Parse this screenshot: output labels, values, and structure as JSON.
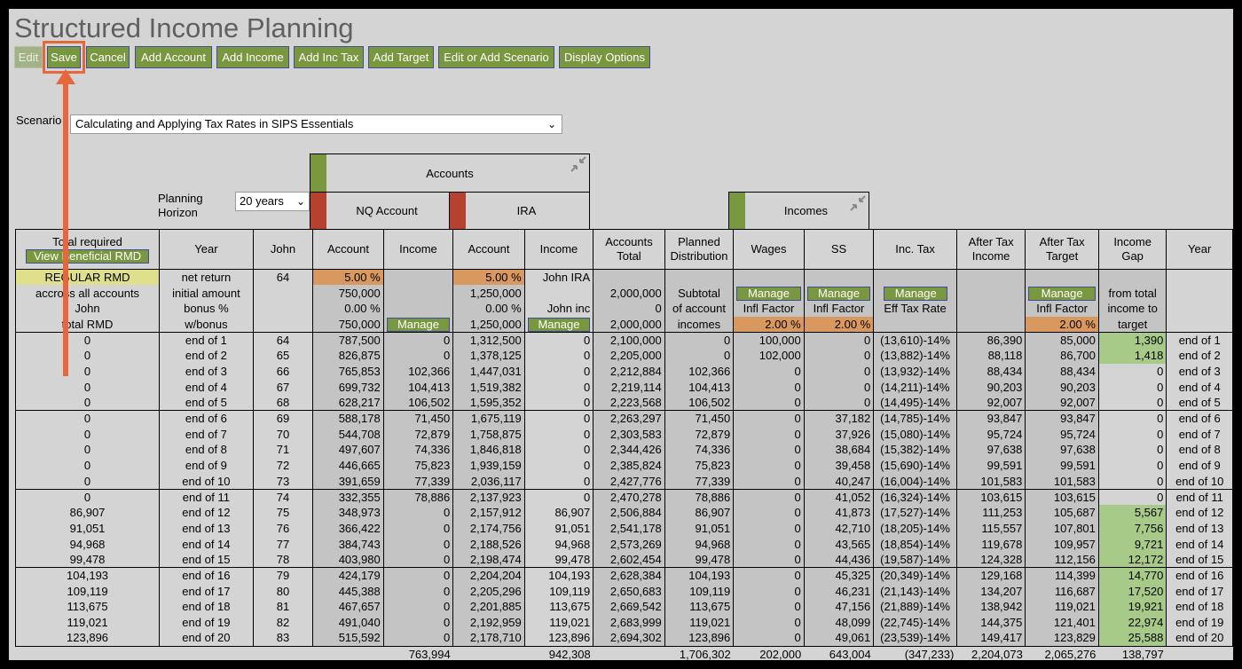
{
  "title": "Structured Income Planning",
  "toolbar": {
    "edit": "Edit",
    "save": "Save",
    "cancel": "Cancel",
    "add_account": "Add Account",
    "add_income": "Add Income",
    "add_inc_tax": "Add Inc Tax",
    "add_target": "Add Target",
    "edit_scenario": "Edit or Add Scenario",
    "display_options": "Display Options"
  },
  "scenario": {
    "label": "Scenario",
    "value": "Calculating and Applying Tax Rates in SIPS Essentials"
  },
  "planning_horizon": {
    "label1": "Planning",
    "label2": "Horizon",
    "value": "20 years"
  },
  "groups": {
    "accounts": "Accounts",
    "incomes": "Incomes",
    "nq_account": "NQ Account",
    "ira": "IRA"
  },
  "colors": {
    "button": "#78973f",
    "accounts_swatch": "#78973f",
    "nq_swatch": "#b5412e",
    "ira_swatch": "#b5412e",
    "incomes_swatch": "#78973f",
    "rate_cell": "#d9995e",
    "gap_cell": "#a8ca88",
    "highlight": "#e8663b"
  },
  "headers": {
    "total_required": "Total required",
    "view_rmd": "View Beneficial RMD",
    "year": "Year",
    "john": "John",
    "account": "Account",
    "income": "Income",
    "accounts_total_1": "Accounts",
    "accounts_total_2": "Total",
    "planned_1": "Planned",
    "planned_2": "Distribution",
    "wages": "Wages",
    "ss": "SS",
    "inc_tax": "Inc. Tax",
    "after_tax_income_1": "After Tax",
    "after_tax_income_2": "Income",
    "after_tax_target_1": "After Tax",
    "after_tax_target_2": "Target",
    "income_gap_1": "Income",
    "income_gap_2": "Gap",
    "year_right": "Year"
  },
  "setup": {
    "regular_rmd": "REGULAR RMD",
    "across": "accross all accounts",
    "john": "John",
    "total_rmd": "total RMD",
    "net_return": "net return",
    "initial_amount": "initial amount",
    "bonus": "bonus %",
    "w_bonus": "w/bonus",
    "john_age": "64",
    "nq_rate": "5.00  %",
    "nq_initial": "750,000",
    "nq_bonus": "0.00  %",
    "nq_wbonus": "750,000",
    "manage": "Manage",
    "ira_rate": "5.00  %",
    "ira_initial": "1,250,000",
    "ira_bonus": "0.00  %",
    "ira_wbonus": "1,250,000",
    "john_ira": "John IRA",
    "john_inc": "John inc",
    "acct_total_initial": "2,000,000",
    "acct_total_bonus": "0",
    "acct_total_wbonus": "2,000,000",
    "subtotal": "Subtotal",
    "of_account": "of account",
    "incomes_lbl": "incomes",
    "infl_factor": "Infl Factor",
    "wages_infl": "2.00  %",
    "ss_infl": "2.00  %",
    "eff_tax_rate": "Eff Tax Rate",
    "target_infl": "2.00  %",
    "from_total": "from total",
    "income_to": "income to",
    "target": "target"
  },
  "rows": [
    [
      "0",
      "end of 1",
      "64",
      "787,500",
      "0",
      "1,312,500",
      "0",
      "2,100,000",
      "0",
      "100,000",
      "0",
      "(13,610)-14%",
      "86,390",
      "85,000",
      "1,390",
      "end of 1"
    ],
    [
      "0",
      "end of 2",
      "65",
      "826,875",
      "0",
      "1,378,125",
      "0",
      "2,205,000",
      "0",
      "102,000",
      "0",
      "(13,882)-14%",
      "88,118",
      "86,700",
      "1,418",
      "end of 2"
    ],
    [
      "0",
      "end of 3",
      "66",
      "765,853",
      "102,366",
      "1,447,031",
      "0",
      "2,212,884",
      "102,366",
      "0",
      "0",
      "(13,932)-14%",
      "88,434",
      "88,434",
      "0",
      "end of 3"
    ],
    [
      "0",
      "end of 4",
      "67",
      "699,732",
      "104,413",
      "1,519,382",
      "0",
      "2,219,114",
      "104,413",
      "0",
      "0",
      "(14,211)-14%",
      "90,203",
      "90,203",
      "0",
      "end of 4"
    ],
    [
      "0",
      "end of 5",
      "68",
      "628,217",
      "106,502",
      "1,595,352",
      "0",
      "2,223,568",
      "106,502",
      "0",
      "0",
      "(14,495)-14%",
      "92,007",
      "92,007",
      "0",
      "end of 5"
    ],
    [
      "0",
      "end of 6",
      "69",
      "588,178",
      "71,450",
      "1,675,119",
      "0",
      "2,263,297",
      "71,450",
      "0",
      "37,182",
      "(14,785)-14%",
      "93,847",
      "93,847",
      "0",
      "end of 6"
    ],
    [
      "0",
      "end of 7",
      "70",
      "544,708",
      "72,879",
      "1,758,875",
      "0",
      "2,303,583",
      "72,879",
      "0",
      "37,926",
      "(15,080)-14%",
      "95,724",
      "95,724",
      "0",
      "end of 7"
    ],
    [
      "0",
      "end of 8",
      "71",
      "497,607",
      "74,336",
      "1,846,818",
      "0",
      "2,344,426",
      "74,336",
      "0",
      "38,684",
      "(15,382)-14%",
      "97,638",
      "97,638",
      "0",
      "end of 8"
    ],
    [
      "0",
      "end of 9",
      "72",
      "446,665",
      "75,823",
      "1,939,159",
      "0",
      "2,385,824",
      "75,823",
      "0",
      "39,458",
      "(15,690)-14%",
      "99,591",
      "99,591",
      "0",
      "end of 9"
    ],
    [
      "0",
      "end of 10",
      "73",
      "391,659",
      "77,339",
      "2,036,117",
      "0",
      "2,427,776",
      "77,339",
      "0",
      "40,247",
      "(16,004)-14%",
      "101,583",
      "101,583",
      "0",
      "end of 10"
    ],
    [
      "0",
      "end of 11",
      "74",
      "332,355",
      "78,886",
      "2,137,923",
      "0",
      "2,470,278",
      "78,886",
      "0",
      "41,052",
      "(16,324)-14%",
      "103,615",
      "103,615",
      "0",
      "end of 11"
    ],
    [
      "86,907",
      "end of 12",
      "75",
      "348,973",
      "0",
      "2,157,912",
      "86,907",
      "2,506,884",
      "86,907",
      "0",
      "41,873",
      "(17,527)-14%",
      "111,253",
      "105,687",
      "5,567",
      "end of 12"
    ],
    [
      "91,051",
      "end of 13",
      "76",
      "366,422",
      "0",
      "2,174,756",
      "91,051",
      "2,541,178",
      "91,051",
      "0",
      "42,710",
      "(18,205)-14%",
      "115,557",
      "107,801",
      "7,756",
      "end of 13"
    ],
    [
      "94,968",
      "end of 14",
      "77",
      "384,743",
      "0",
      "2,188,526",
      "94,968",
      "2,573,269",
      "94,968",
      "0",
      "43,565",
      "(18,854)-14%",
      "119,678",
      "109,957",
      "9,721",
      "end of 14"
    ],
    [
      "99,478",
      "end of 15",
      "78",
      "403,980",
      "0",
      "2,198,474",
      "99,478",
      "2,602,454",
      "99,478",
      "0",
      "44,436",
      "(19,587)-14%",
      "124,328",
      "112,156",
      "12,172",
      "end of 15"
    ],
    [
      "104,193",
      "end of 16",
      "79",
      "424,179",
      "0",
      "2,204,204",
      "104,193",
      "2,628,384",
      "104,193",
      "0",
      "45,325",
      "(20,349)-14%",
      "129,168",
      "114,399",
      "14,770",
      "end of 16"
    ],
    [
      "109,119",
      "end of 17",
      "80",
      "445,388",
      "0",
      "2,205,296",
      "109,119",
      "2,650,683",
      "109,119",
      "0",
      "46,231",
      "(21,143)-14%",
      "134,207",
      "116,687",
      "17,520",
      "end of 17"
    ],
    [
      "113,675",
      "end of 18",
      "81",
      "467,657",
      "0",
      "2,201,885",
      "113,675",
      "2,669,542",
      "113,675",
      "0",
      "47,156",
      "(21,889)-14%",
      "138,942",
      "119,021",
      "19,921",
      "end of 18"
    ],
    [
      "119,021",
      "end of 19",
      "82",
      "491,040",
      "0",
      "2,192,959",
      "119,021",
      "2,683,999",
      "119,021",
      "0",
      "48,099",
      "(22,745)-14%",
      "144,375",
      "121,401",
      "22,974",
      "end of 19"
    ],
    [
      "123,896",
      "end of 20",
      "83",
      "515,592",
      "0",
      "2,178,710",
      "123,896",
      "2,694,302",
      "123,896",
      "0",
      "49,061",
      "(23,539)-14%",
      "149,417",
      "123,829",
      "25,588",
      "end of 20"
    ]
  ],
  "totals": {
    "nq_income": "763,994",
    "ira_income": "942,308",
    "planned": "1,706,302",
    "wages": "202,000",
    "ss": "643,004",
    "inc_tax": "(347,233)",
    "after_tax_income": "2,204,073",
    "after_tax_target": "2,065,276",
    "income_gap": "138,797"
  }
}
